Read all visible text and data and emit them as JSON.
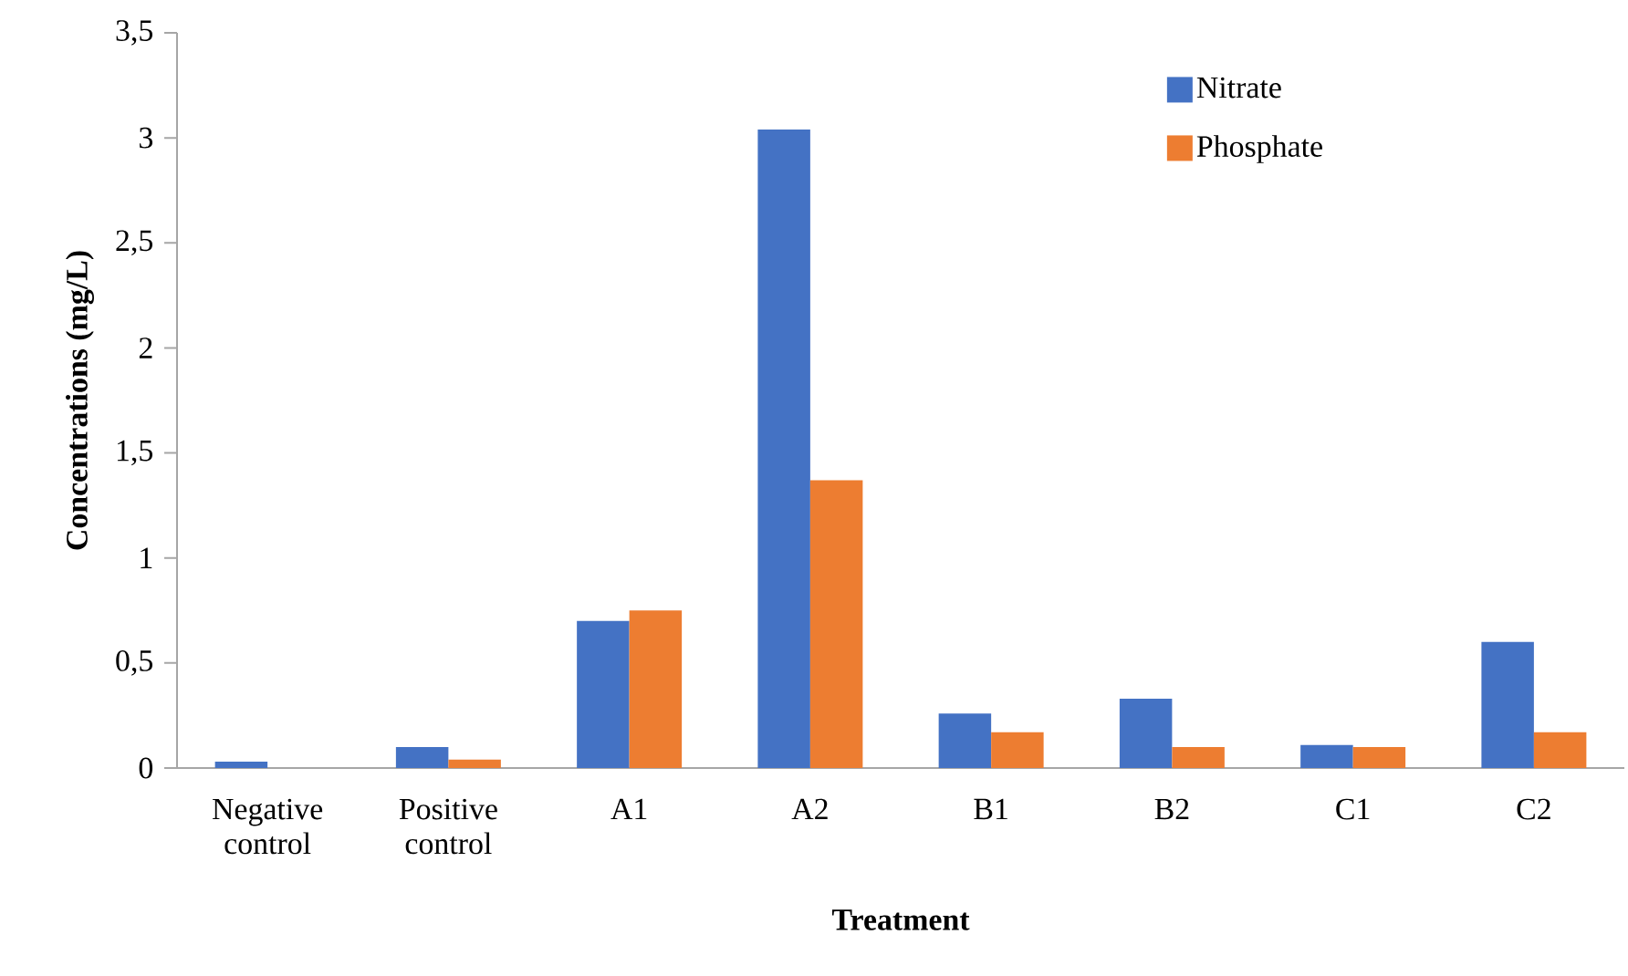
{
  "chart_data": {
    "type": "bar",
    "xlabel": "Treatment",
    "ylabel": "Concentrations (mg/L)",
    "categories": [
      "Negative control",
      "Positive control",
      "A1",
      "A2",
      "B1",
      "B2",
      "C1",
      "C2"
    ],
    "series": [
      {
        "name": "Nitrate",
        "color": "#4472c4",
        "values": [
          0.03,
          0.1,
          0.7,
          3.04,
          0.26,
          0.33,
          0.11,
          0.6
        ]
      },
      {
        "name": "Phosphate",
        "color": "#ed7d31",
        "values": [
          0,
          0.04,
          0.75,
          1.37,
          0.17,
          0.1,
          0.1,
          0.17
        ]
      }
    ],
    "ylim": [
      0,
      3.5
    ],
    "yticks": [
      0,
      {
        "value": 0.5,
        "label": "0,5"
      },
      1,
      {
        "value": 1.5,
        "label": "1,5"
      },
      2,
      {
        "value": 2.5,
        "label": "2,5"
      },
      3,
      {
        "value": 3.5,
        "label": "3,5"
      }
    ],
    "grid": false,
    "legend": "top right"
  }
}
